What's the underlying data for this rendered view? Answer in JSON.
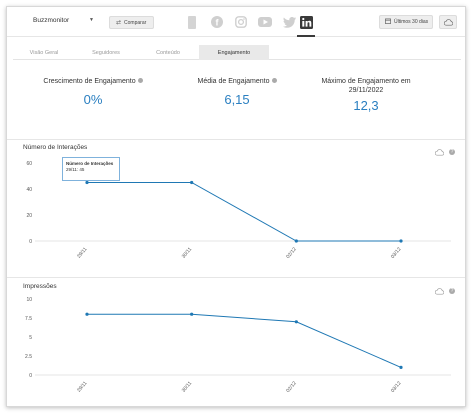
{
  "header": {
    "brand": "Buzzmonitor",
    "compare_label": "Comparar",
    "period_label": "Últimos 30 dias"
  },
  "social_icons": [
    "tablet-icon",
    "facebook-icon",
    "instagram-icon",
    "youtube-icon",
    "twitter-icon",
    "linkedin-icon"
  ],
  "tabs": [
    {
      "label": "Visão Geral",
      "active": false
    },
    {
      "label": "Seguidores",
      "active": false
    },
    {
      "label": "Conteúdo",
      "active": false
    },
    {
      "label": "Engajamento",
      "active": true
    }
  ],
  "metrics": [
    {
      "label": "Crescimento de Engajamento",
      "value": "0%"
    },
    {
      "label": "Média de Engajamento",
      "value": "6,15"
    },
    {
      "label": "Máximo de Engajamento em 29/11/2022",
      "value": "12,3"
    }
  ],
  "colors": {
    "accent": "#2a7fc1",
    "line": "#1f78b4"
  },
  "chart_data": [
    {
      "type": "line",
      "title": "Número de Interações",
      "categories": [
        "29/11",
        "30/11",
        "02/12",
        "03/12"
      ],
      "values": [
        45,
        45,
        0,
        0
      ],
      "ylim": [
        0,
        60
      ],
      "yticks": [
        "0",
        "20",
        "40",
        "60"
      ],
      "grid": false,
      "tooltip": {
        "title": "Número de Interações",
        "text": "29/11: 45"
      }
    },
    {
      "type": "line",
      "title": "Impressões",
      "categories": [
        "29/11",
        "30/11",
        "02/12",
        "03/12"
      ],
      "values": [
        8,
        8,
        7,
        1
      ],
      "ylim": [
        0,
        10
      ],
      "yticks": [
        "0",
        "2.5",
        "5",
        "7.5",
        "10"
      ],
      "grid": false
    }
  ]
}
